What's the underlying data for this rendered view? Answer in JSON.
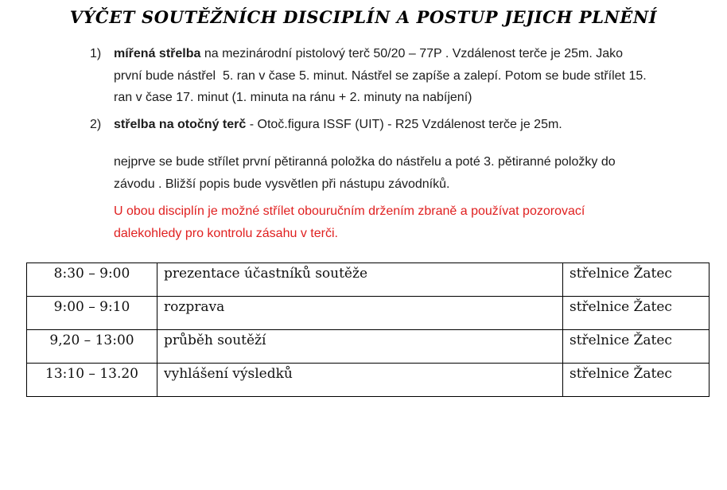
{
  "page": {
    "title": "VÝČET SOUTĚŽNÍCH DISCIPLÍN A POSTUP JEJICH PLNĚNÍ"
  },
  "colors": {
    "note_red": "#e02020",
    "text": "#1c1c1c"
  },
  "list": {
    "items": [
      {
        "number": "1)",
        "bold": "mířená střelba",
        "text": " na mezinárodní pistolový terč 50/20 – 77P . Vzdálenost terče je 25m. Jako první bude nástřel  5. ran v čase 5. minut. Nástřel se zapíše a zalepí. Potom se bude střílet 15. ran v čase 17. minut (1. minuta na ránu + 2. minuty na nabíjení)"
      },
      {
        "number": "2)",
        "bold": "střelba na otočný terč",
        "text": " - Otoč.figura ISSF (UIT) - R25 Vzdálenost terče je 25m."
      }
    ]
  },
  "paragraphs": {
    "detail": "nejprve se bude střílet první pětiranná položka do nástřelu a poté 3. pětiranné položky do závodu . Bližší popis bude vysvětlen při nástupu závodníků.",
    "note_red": "U obou disciplín je možné střílet obouručním držením zbraně a používat pozorovací dalekohledy pro kontrolu zásahu v terči."
  },
  "schedule_table": {
    "rows": [
      {
        "time": "8:30 – 9:00",
        "activity": "prezentace účastníků soutěže",
        "location": "střelnice Žatec"
      },
      {
        "time": "9:00 – 9:10",
        "activity": "rozprava",
        "location": "střelnice Žatec"
      },
      {
        "time": "9,20 – 13:00",
        "activity": "průběh soutěží",
        "location": "střelnice Žatec"
      },
      {
        "time": "13:10 – 13.20",
        "activity": "vyhlášení výsledků",
        "location": "střelnice Žatec"
      }
    ]
  }
}
